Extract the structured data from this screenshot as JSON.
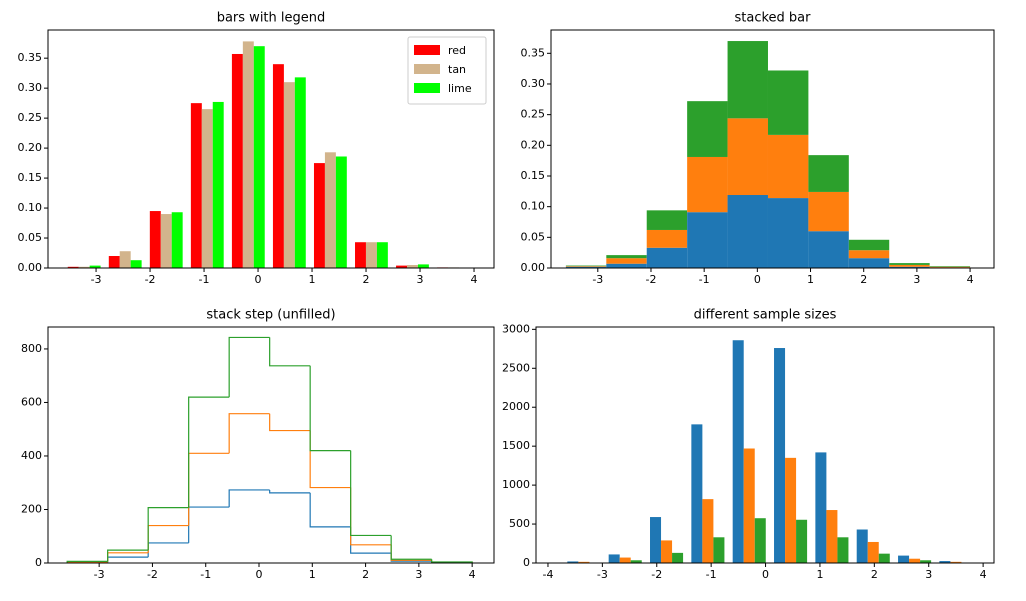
{
  "chart_data": [
    {
      "type": "histogram",
      "histtype": "bar",
      "title": "bars with legend",
      "bins": [
        -3.6,
        -2.84,
        -2.08,
        -1.32,
        -0.56,
        0.2,
        0.96,
        1.72,
        2.48,
        3.24,
        4.0
      ],
      "series": [
        {
          "name": "red",
          "color": "#ff0000",
          "values": [
            0.002,
            0.02,
            0.095,
            0.275,
            0.357,
            0.34,
            0.175,
            0.043,
            0.004,
            0.001
          ]
        },
        {
          "name": "tan",
          "color": "#d2b48c",
          "values": [
            0.002,
            0.028,
            0.09,
            0.265,
            0.378,
            0.31,
            0.193,
            0.043,
            0.005,
            0.001
          ]
        },
        {
          "name": "lime",
          "color": "#00ff00",
          "values": [
            0.004,
            0.013,
            0.093,
            0.277,
            0.37,
            0.318,
            0.186,
            0.043,
            0.006,
            0.0
          ]
        }
      ],
      "xlim": [
        -3.89,
        4.37
      ],
      "xticks": [
        -3,
        -2,
        -1,
        0,
        1,
        2,
        3,
        4
      ],
      "ylim": [
        0,
        0.397
      ],
      "yticks": [
        {
          "value": 0,
          "label": "0.00"
        },
        {
          "value": 0.05,
          "label": "0.05"
        },
        {
          "value": 0.1,
          "label": "0.10"
        },
        {
          "value": 0.15,
          "label": "0.15"
        },
        {
          "value": 0.2,
          "label": "0.20"
        },
        {
          "value": 0.25,
          "label": "0.25"
        },
        {
          "value": 0.3,
          "label": "0.30"
        },
        {
          "value": 0.35,
          "label": "0.35"
        }
      ],
      "legend": "upper right"
    },
    {
      "type": "histogram",
      "histtype": "barstacked",
      "title": "stacked bar",
      "bins": [
        -3.6,
        -2.84,
        -2.08,
        -1.32,
        -0.56,
        0.2,
        0.96,
        1.72,
        2.48,
        3.24,
        4.0
      ],
      "series": [
        {
          "color": "#1f77b4",
          "values": [
            0.002,
            0.007,
            0.033,
            0.091,
            0.119,
            0.114,
            0.06,
            0.016,
            0.002,
            0.001
          ]
        },
        {
          "color": "#ff7f0e",
          "values": [
            0.001,
            0.009,
            0.029,
            0.09,
            0.125,
            0.103,
            0.064,
            0.013,
            0.003,
            0.001
          ]
        },
        {
          "color": "#2ca02c",
          "values": [
            0.001,
            0.005,
            0.032,
            0.091,
            0.126,
            0.105,
            0.06,
            0.017,
            0.003,
            0.001
          ]
        }
      ],
      "xlim": [
        -3.88,
        4.45
      ],
      "xticks": [
        -3,
        -2,
        -1,
        0,
        1,
        2,
        3,
        4
      ],
      "ylim": [
        0,
        0.388
      ],
      "yticks": [
        {
          "value": 0,
          "label": "0.00"
        },
        {
          "value": 0.05,
          "label": "0.05"
        },
        {
          "value": 0.1,
          "label": "0.10"
        },
        {
          "value": 0.15,
          "label": "0.15"
        },
        {
          "value": 0.2,
          "label": "0.20"
        },
        {
          "value": 0.25,
          "label": "0.25"
        },
        {
          "value": 0.3,
          "label": "0.30"
        },
        {
          "value": 0.35,
          "label": "0.35"
        }
      ]
    },
    {
      "type": "histogram",
      "histtype": "step",
      "stacked": true,
      "title": "stack step (unfilled)",
      "bins": [
        -3.6,
        -2.84,
        -2.08,
        -1.32,
        -0.56,
        0.2,
        0.96,
        1.72,
        2.48,
        3.24,
        4.0
      ],
      "series": [
        {
          "color": "#1f77b4",
          "values": [
            2,
            22,
            75,
            209,
            273,
            262,
            135,
            37,
            7,
            1
          ]
        },
        {
          "color": "#ff7f0e",
          "values": [
            2,
            16,
            65,
            201,
            285,
            233,
            147,
            31,
            3,
            2
          ]
        },
        {
          "color": "#2ca02c",
          "values": [
            2,
            10,
            67,
            210,
            285,
            242,
            138,
            35,
            4,
            1
          ]
        }
      ],
      "xlim": [
        -3.96,
        4.41
      ],
      "xticks": [
        -3,
        -2,
        -1,
        0,
        1,
        2,
        3,
        4
      ],
      "ylim": [
        0,
        882
      ],
      "yticks": [
        0,
        200,
        400,
        600,
        800
      ]
    },
    {
      "type": "histogram",
      "histtype": "bar",
      "title": "different sample sizes",
      "bins": [
        -3.72,
        -2.96,
        -2.2,
        -1.44,
        -0.68,
        0.08,
        0.84,
        1.6,
        2.36,
        3.12,
        3.88
      ],
      "series": [
        {
          "color": "#1f77b4",
          "values": [
            20,
            110,
            590,
            1780,
            2860,
            2760,
            1420,
            430,
            95,
            25
          ]
        },
        {
          "color": "#ff7f0e",
          "values": [
            15,
            70,
            290,
            820,
            1470,
            1350,
            680,
            270,
            55,
            15
          ]
        },
        {
          "color": "#2ca02c",
          "values": [
            5,
            35,
            130,
            330,
            575,
            555,
            330,
            120,
            35,
            5
          ]
        }
      ],
      "xlim": [
        -4.22,
        4.2
      ],
      "xticks": [
        -4,
        -3,
        -2,
        -1,
        0,
        1,
        2,
        3,
        4
      ],
      "ylim": [
        0,
        3030
      ],
      "yticks": [
        0,
        500,
        1000,
        1500,
        2000,
        2500,
        3000
      ]
    }
  ]
}
